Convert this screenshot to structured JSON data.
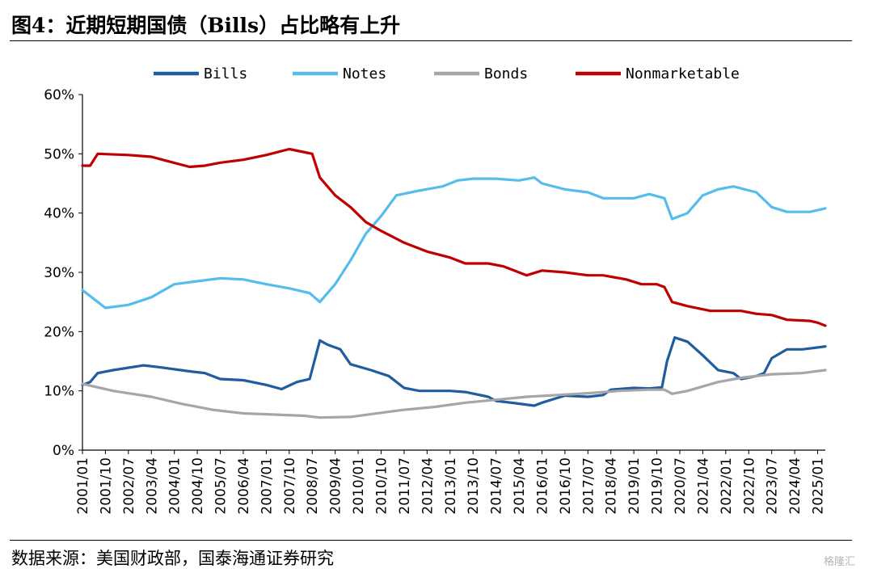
{
  "title": "图4：近期短期国债（Bills）占比略有上升",
  "source": "数据来源：美国财政部，国泰海通证券研究",
  "watermark": "格隆汇",
  "chart_data": {
    "type": "line",
    "title": "",
    "xlabel": "",
    "ylabel": "",
    "ylim": [
      0,
      60
    ],
    "yticks": [
      "0%",
      "10%",
      "20%",
      "30%",
      "40%",
      "50%",
      "60%"
    ],
    "xlim": [
      "2001/01",
      "2025/04"
    ],
    "xticks": [
      "2001/01",
      "2001/10",
      "2002/07",
      "2003/04",
      "2004/01",
      "2004/10",
      "2005/07",
      "2006/04",
      "2007/01",
      "2007/10",
      "2008/07",
      "2009/04",
      "2010/01",
      "2010/10",
      "2011/07",
      "2012/04",
      "2013/01",
      "2013/10",
      "2014/07",
      "2015/04",
      "2016/01",
      "2016/10",
      "2017/07",
      "2018/04",
      "2019/01",
      "2019/10",
      "2020/07",
      "2021/04",
      "2022/01",
      "2022/10",
      "2023/07",
      "2024/04",
      "2025/01"
    ],
    "legend_position": "top",
    "grid": false,
    "series": [
      {
        "name": "Bills",
        "color": "#1F5CA0",
        "points": [
          [
            "2001/01",
            11.0
          ],
          [
            "2001/04",
            11.5
          ],
          [
            "2001/07",
            13.0
          ],
          [
            "2002/01",
            13.5
          ],
          [
            "2003/01",
            14.3
          ],
          [
            "2003/07",
            14.0
          ],
          [
            "2004/07",
            13.3
          ],
          [
            "2005/01",
            13.0
          ],
          [
            "2005/07",
            12.0
          ],
          [
            "2006/04",
            11.8
          ],
          [
            "2007/01",
            11.0
          ],
          [
            "2007/07",
            10.3
          ],
          [
            "2008/01",
            11.5
          ],
          [
            "2008/06",
            12.0
          ],
          [
            "2008/10",
            18.5
          ],
          [
            "2009/01",
            17.8
          ],
          [
            "2009/06",
            17.0
          ],
          [
            "2009/10",
            14.5
          ],
          [
            "2010/06",
            13.5
          ],
          [
            "2011/01",
            12.5
          ],
          [
            "2011/07",
            10.5
          ],
          [
            "2012/01",
            10.0
          ],
          [
            "2013/01",
            10.0
          ],
          [
            "2013/07",
            9.8
          ],
          [
            "2014/04",
            9.0
          ],
          [
            "2014/07",
            8.3
          ],
          [
            "2015/01",
            8.0
          ],
          [
            "2015/10",
            7.5
          ],
          [
            "2016/01",
            8.0
          ],
          [
            "2016/10",
            9.2
          ],
          [
            "2017/07",
            9.0
          ],
          [
            "2018/01",
            9.3
          ],
          [
            "2018/04",
            10.2
          ],
          [
            "2019/01",
            10.5
          ],
          [
            "2019/07",
            10.4
          ],
          [
            "2019/12",
            10.6
          ],
          [
            "2020/02",
            15.0
          ],
          [
            "2020/05",
            19.0
          ],
          [
            "2020/10",
            18.3
          ],
          [
            "2021/04",
            16.0
          ],
          [
            "2021/10",
            13.5
          ],
          [
            "2022/04",
            13.0
          ],
          [
            "2022/07",
            12.0
          ],
          [
            "2023/01",
            12.5
          ],
          [
            "2023/04",
            13.0
          ],
          [
            "2023/07",
            15.5
          ],
          [
            "2024/01",
            17.0
          ],
          [
            "2024/07",
            17.0
          ],
          [
            "2025/04",
            17.5
          ]
        ]
      },
      {
        "name": "Notes",
        "color": "#55BDEB",
        "points": [
          [
            "2001/01",
            27.0
          ],
          [
            "2001/07",
            25.0
          ],
          [
            "2001/10",
            24.0
          ],
          [
            "2002/07",
            24.5
          ],
          [
            "2003/04",
            25.8
          ],
          [
            "2004/01",
            28.0
          ],
          [
            "2004/10",
            28.5
          ],
          [
            "2005/07",
            29.0
          ],
          [
            "2006/04",
            28.8
          ],
          [
            "2007/01",
            28.0
          ],
          [
            "2007/10",
            27.3
          ],
          [
            "2008/06",
            26.5
          ],
          [
            "2008/10",
            25.0
          ],
          [
            "2009/04",
            28.0
          ],
          [
            "2009/10",
            32.0
          ],
          [
            "2010/04",
            36.5
          ],
          [
            "2010/10",
            39.5
          ],
          [
            "2011/04",
            43.0
          ],
          [
            "2012/01",
            43.8
          ],
          [
            "2012/10",
            44.5
          ],
          [
            "2013/04",
            45.5
          ],
          [
            "2013/10",
            45.8
          ],
          [
            "2014/07",
            45.8
          ],
          [
            "2015/04",
            45.5
          ],
          [
            "2015/10",
            46.0
          ],
          [
            "2016/01",
            45.0
          ],
          [
            "2016/10",
            44.0
          ],
          [
            "2017/07",
            43.5
          ],
          [
            "2018/01",
            42.5
          ],
          [
            "2019/01",
            42.5
          ],
          [
            "2019/07",
            43.2
          ],
          [
            "2020/01",
            42.5
          ],
          [
            "2020/04",
            39.0
          ],
          [
            "2020/10",
            40.0
          ],
          [
            "2021/04",
            43.0
          ],
          [
            "2021/10",
            44.0
          ],
          [
            "2022/04",
            44.5
          ],
          [
            "2023/01",
            43.5
          ],
          [
            "2023/07",
            41.0
          ],
          [
            "2024/01",
            40.2
          ],
          [
            "2024/10",
            40.2
          ],
          [
            "2025/04",
            40.8
          ]
        ]
      },
      {
        "name": "Bonds",
        "color": "#A6A6A6",
        "points": [
          [
            "2001/01",
            11.2
          ],
          [
            "2002/01",
            10.0
          ],
          [
            "2003/04",
            9.0
          ],
          [
            "2004/04",
            7.8
          ],
          [
            "2005/04",
            6.8
          ],
          [
            "2006/04",
            6.2
          ],
          [
            "2007/04",
            6.0
          ],
          [
            "2008/04",
            5.8
          ],
          [
            "2008/10",
            5.5
          ],
          [
            "2009/10",
            5.6
          ],
          [
            "2010/10",
            6.3
          ],
          [
            "2011/07",
            6.8
          ],
          [
            "2012/07",
            7.3
          ],
          [
            "2013/07",
            8.0
          ],
          [
            "2014/07",
            8.5
          ],
          [
            "2015/07",
            9.0
          ],
          [
            "2016/07",
            9.3
          ],
          [
            "2017/07",
            9.6
          ],
          [
            "2018/07",
            10.0
          ],
          [
            "2019/07",
            10.2
          ],
          [
            "2020/01",
            10.2
          ],
          [
            "2020/04",
            9.5
          ],
          [
            "2020/10",
            10.0
          ],
          [
            "2021/10",
            11.5
          ],
          [
            "2022/07",
            12.2
          ],
          [
            "2023/07",
            12.8
          ],
          [
            "2024/07",
            13.0
          ],
          [
            "2025/04",
            13.5
          ]
        ]
      },
      {
        "name": "Nonmarketable",
        "color": "#C00000",
        "points": [
          [
            "2001/01",
            48.0
          ],
          [
            "2001/04",
            48.0
          ],
          [
            "2001/07",
            50.0
          ],
          [
            "2002/07",
            49.8
          ],
          [
            "2003/04",
            49.5
          ],
          [
            "2003/10",
            48.8
          ],
          [
            "2004/07",
            47.8
          ],
          [
            "2005/01",
            48.0
          ],
          [
            "2005/07",
            48.5
          ],
          [
            "2006/04",
            49.0
          ],
          [
            "2007/01",
            49.8
          ],
          [
            "2007/10",
            50.8
          ],
          [
            "2008/07",
            50.0
          ],
          [
            "2008/10",
            46.0
          ],
          [
            "2009/04",
            43.0
          ],
          [
            "2009/10",
            41.0
          ],
          [
            "2010/04",
            38.5
          ],
          [
            "2010/10",
            37.0
          ],
          [
            "2011/07",
            35.0
          ],
          [
            "2012/04",
            33.5
          ],
          [
            "2013/01",
            32.5
          ],
          [
            "2013/07",
            31.5
          ],
          [
            "2014/04",
            31.5
          ],
          [
            "2014/10",
            31.0
          ],
          [
            "2015/07",
            29.5
          ],
          [
            "2016/01",
            30.3
          ],
          [
            "2016/10",
            30.0
          ],
          [
            "2017/07",
            29.5
          ],
          [
            "2018/01",
            29.5
          ],
          [
            "2018/10",
            28.8
          ],
          [
            "2019/04",
            28.0
          ],
          [
            "2019/10",
            28.0
          ],
          [
            "2020/01",
            27.5
          ],
          [
            "2020/04",
            25.0
          ],
          [
            "2020/10",
            24.3
          ],
          [
            "2021/07",
            23.5
          ],
          [
            "2022/01",
            23.5
          ],
          [
            "2022/07",
            23.5
          ],
          [
            "2023/01",
            23.0
          ],
          [
            "2023/07",
            22.8
          ],
          [
            "2024/01",
            22.0
          ],
          [
            "2024/10",
            21.8
          ],
          [
            "2025/01",
            21.5
          ],
          [
            "2025/04",
            21.0
          ]
        ]
      }
    ]
  }
}
